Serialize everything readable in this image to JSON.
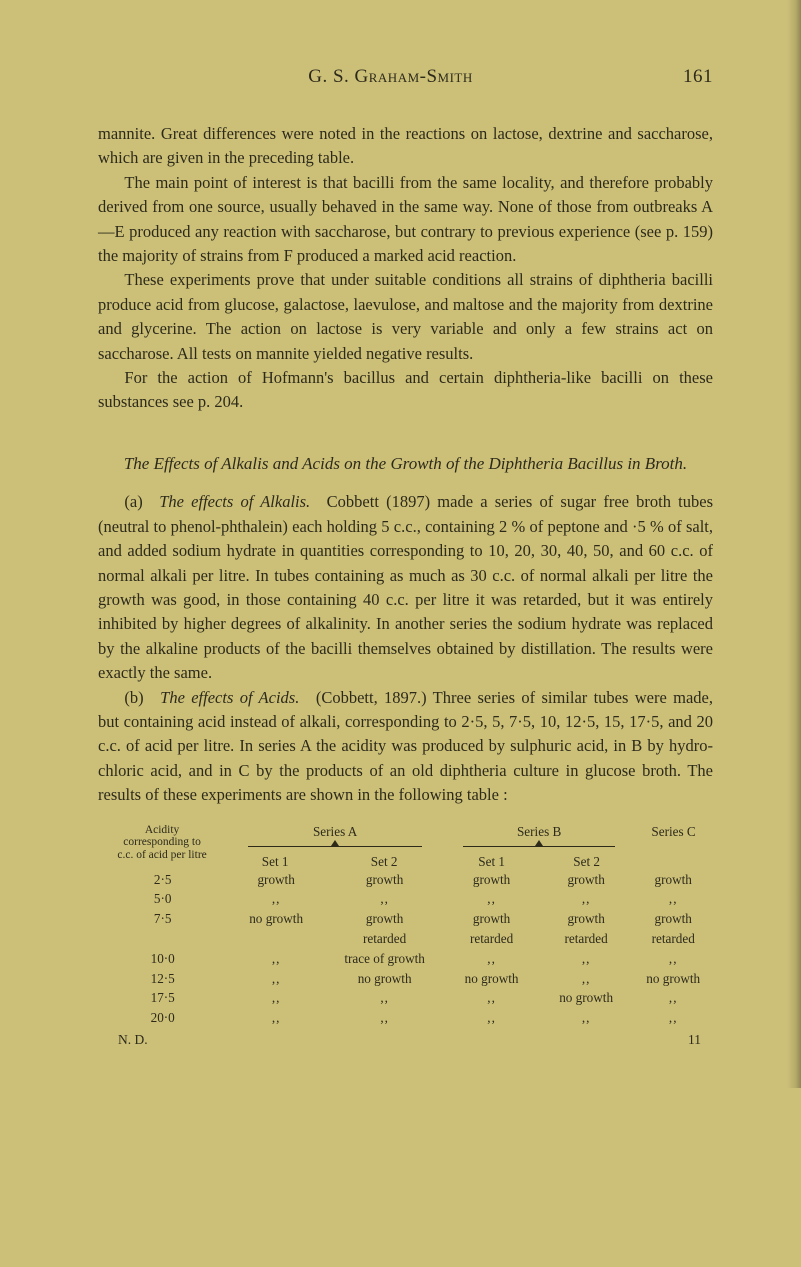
{
  "header": {
    "author": "G. S. Graham-Smith",
    "page": "161"
  },
  "para1": "mannite. Great differences were noted in the reactions on lactose, dextrine and saccharose, which are given in the preceding table.",
  "para2": "The main point of interest is that bacilli from the same locality, and therefore probably derived from one source, usually behaved in the same way. None of those from outbreaks A—E produced any reaction with saccharose, but contrary to previous experience (see p. 159) the majority of strains from F produced a marked acid reaction.",
  "para3": "These experiments prove that under suitable conditions all strains of diphtheria bacilli produce acid from glucose, galactose, laevulose, and maltose and the majority from dextrine and glycerine. The action on lactose is very variable and only a few strains act on saccharose. All tests on mannite yielded negative results.",
  "para4": "For the action of Hofmann's bacillus and certain diphtheria-like bacilli on these substances see p. 204.",
  "sectionTitle1": "The Effects of Alkalis and Acids on the Growth of the Diphtheria Bacillus in Broth.",
  "para5a": "(a) ",
  "para5title": "The effects of Alkalis.",
  "para5b": " Cobbett (1897) made a series of sugar free broth tubes (neutral to phenol-phthalein) each holding 5 c.c., containing 2 % of peptone and ·5 % of salt, and added sodium hydrate in quantities corresponding to 10, 20, 30, 40, 50, and 60 c.c. of normal alkali per litre. In tubes containing as much as 30 c.c. of normal alkali per litre the growth was good, in those containing 40 c.c. per litre it was retarded, but it was entirely inhibited by higher degrees of alkalinity. In another series the sodium hydrate was replaced by the alkaline products of the bacilli themselves obtained by distillation. The results were exactly the same.",
  "para6a": "(b) ",
  "para6title": "The effects of Acids.",
  "para6b": " (Cobbett, 1897.) Three series of similar tubes were made, but containing acid instead of alkali, corresponding to 2·5, 5, 7·5, 10, 12·5, 15, 17·5, and 20 c.c. of acid per litre. In series A the acidity was produced by sulphuric acid, in B by hydro- chloric acid, and in C by the products of an old diphtheria culture in glucose broth. The results of these experiments are shown in the following table :",
  "table": {
    "acidHead1": "Acidity",
    "acidHead2": "corresponding to",
    "acidHead3": "c.c. of acid per litre",
    "seriesA": "Series A",
    "seriesB": "Series B",
    "seriesC": "Series C",
    "set1": "Set 1",
    "set2": "Set 2",
    "rows": [
      {
        "a": "2·5",
        "c1": "growth",
        "c2": "growth",
        "c3": "growth",
        "c4": "growth",
        "c5": "growth"
      },
      {
        "a": "5·0",
        "c1": ",,",
        "c2": ",,",
        "c3": ",,",
        "c4": ",,",
        "c5": ",,"
      },
      {
        "a": "7·5",
        "c1": "no growth",
        "c2": "growth",
        "c3": "growth",
        "c4": "growth",
        "c5": "growth"
      },
      {
        "a": "",
        "c1": "",
        "c2": "retarded",
        "c3": "retarded",
        "c4": "retarded",
        "c5": "retarded"
      },
      {
        "a": "10·0",
        "c1": ",,",
        "c2": "trace of growth",
        "c3": ",,",
        "c4": ",,",
        "c5": ",,"
      },
      {
        "a": "12·5",
        "c1": ",,",
        "c2": "no growth",
        "c3": "no growth",
        "c4": ",,",
        "c5": "no growth"
      },
      {
        "a": "17·5",
        "c1": ",,",
        "c2": ",,",
        "c3": ",,",
        "c4": "no growth",
        "c5": ",,"
      },
      {
        "a": "20·0",
        "c1": ",,",
        "c2": ",,",
        "c3": ",,",
        "c4": ",,",
        "c5": ",,"
      }
    ],
    "footLeft": "N. D.",
    "footRight": "11"
  }
}
